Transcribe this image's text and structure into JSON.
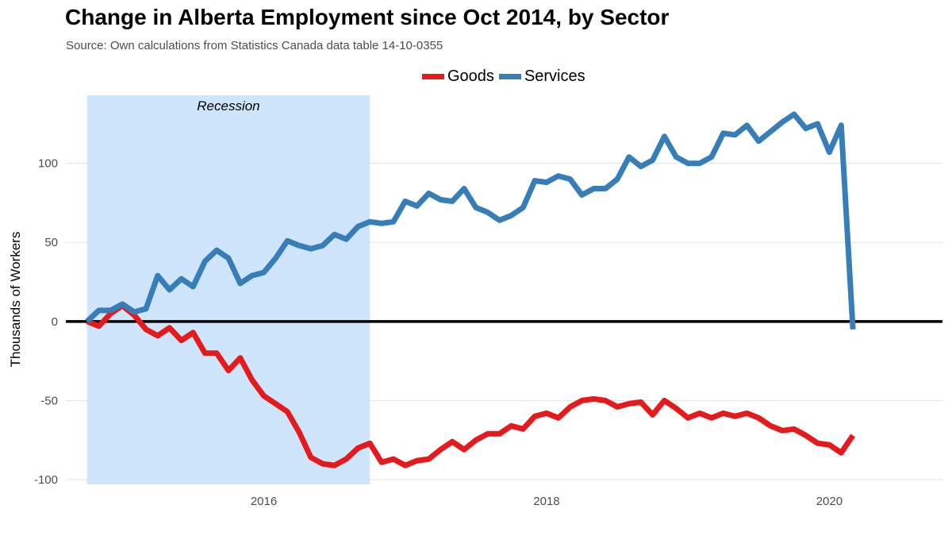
{
  "chart_data": {
    "type": "line",
    "title": "Change in Alberta Employment since Oct 2014, by Sector",
    "subtitle": "Source: Own calculations from Statistics Canada data table 14-10-0355",
    "xlabel": "",
    "ylabel": "Thousands of Workers",
    "xlim": [
      2014.6,
      2020.8
    ],
    "ylim": [
      -103,
      143
    ],
    "x_ticks": [
      2016,
      2018,
      2020
    ],
    "x_tick_labels": [
      "2016",
      "2018",
      "2020"
    ],
    "y_ticks": [
      -100,
      -50,
      0,
      50,
      100
    ],
    "y_tick_labels": [
      "-100",
      "-50",
      "0",
      "50",
      "100"
    ],
    "grid": true,
    "legend": "top-center",
    "zero_line": true,
    "shaded_region": {
      "label": "Recession",
      "x_start": 2014.75,
      "x_end": 2016.75
    },
    "x_start": 2014.75,
    "x_step": 0.083333,
    "series": [
      {
        "name": "Goods",
        "color": "#e41a1c",
        "values": [
          0,
          -3,
          5,
          10,
          4,
          -5,
          -9,
          -4,
          -12,
          -7,
          -20,
          -20,
          -31,
          -23,
          -37,
          -47,
          -52,
          -57,
          -70,
          -86,
          -90,
          -91,
          -87,
          -80,
          -77,
          -89,
          -87,
          -91,
          -88,
          -87,
          -81,
          -76,
          -81,
          -75,
          -71,
          -71,
          -66,
          -68,
          -60,
          -58,
          -61,
          -54,
          -50,
          -49,
          -50,
          -54,
          -52,
          -51,
          -59,
          -50,
          -55,
          -61,
          -58,
          -61,
          -58,
          -60,
          -58,
          -61,
          -66,
          -69,
          -68,
          -72,
          -77,
          -78,
          -83,
          -72
        ]
      },
      {
        "name": "Services",
        "color": "#377eb8",
        "values": [
          0,
          7,
          7,
          11,
          6,
          8,
          29,
          20,
          27,
          22,
          38,
          45,
          40,
          24,
          29,
          31,
          40,
          51,
          48,
          46,
          48,
          55,
          52,
          60,
          63,
          62,
          63,
          76,
          73,
          81,
          77,
          76,
          84,
          72,
          69,
          64,
          67,
          72,
          89,
          88,
          92,
          90,
          80,
          84,
          84,
          90,
          104,
          98,
          102,
          117,
          104,
          100,
          100,
          104,
          119,
          118,
          124,
          114,
          120,
          126,
          131,
          122,
          125,
          107,
          124,
          -5
        ]
      }
    ]
  }
}
